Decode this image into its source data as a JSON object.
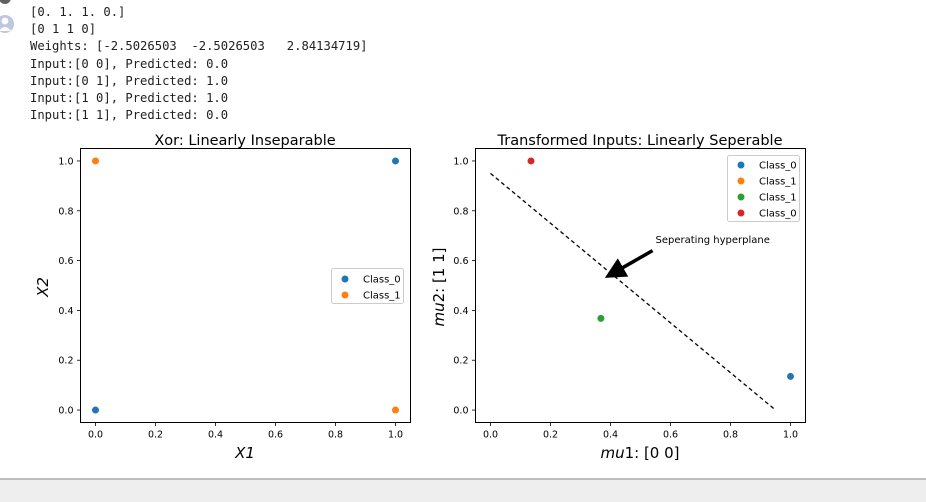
{
  "output_lines": [
    "[0. 1. 1. 0.]",
    "[0 1 1 0]",
    "Weights: [-2.5026503  -2.5026503   2.84134719]",
    "Input:[0 0], Predicted: 0.0",
    "Input:[0 1], Predicted: 1.0",
    "Input:[1 0], Predicted: 1.0",
    "Input:[1 1], Predicted: 0.0"
  ],
  "chart_data": [
    {
      "type": "scatter",
      "title": "Xor: Linearly Inseparable",
      "xlabel": "X1",
      "ylabel": "X2",
      "xlim": [
        -0.05,
        1.05
      ],
      "ylim": [
        -0.05,
        1.05
      ],
      "xticks": [
        "0.0",
        "0.2",
        "0.4",
        "0.6",
        "0.8",
        "1.0"
      ],
      "yticks": [
        "0.0",
        "0.2",
        "0.4",
        "0.6",
        "0.8",
        "1.0"
      ],
      "legend_position": "right",
      "series": [
        {
          "name": "Class_0",
          "color": "#1f77b4",
          "points": [
            [
              0,
              0
            ],
            [
              1,
              1
            ]
          ]
        },
        {
          "name": "Class_1",
          "color": "#ff7f0e",
          "points": [
            [
              0,
              1
            ],
            [
              1,
              0
            ]
          ]
        }
      ]
    },
    {
      "type": "scatter",
      "title": "Transformed Inputs: Linearly Seperable",
      "xlabel_italic": "mu",
      "xlabel_rest": "1: [0 0]",
      "ylabel_italic": "mu",
      "ylabel_rest": "2: [1 1]",
      "xlim": [
        -0.05,
        1.05
      ],
      "ylim": [
        -0.05,
        1.05
      ],
      "xticks": [
        "0.0",
        "0.2",
        "0.4",
        "0.6",
        "0.8",
        "1.0"
      ],
      "yticks": [
        "0.0",
        "0.2",
        "0.4",
        "0.6",
        "0.8",
        "1.0"
      ],
      "legend_position": "top-right",
      "series": [
        {
          "name": "Class_0",
          "color": "#1f77b4",
          "points": [
            [
              1.0,
              0.135
            ]
          ]
        },
        {
          "name": "Class_1",
          "color": "#ff7f0e",
          "points": []
        },
        {
          "name": "Class_1",
          "color": "#2ca02c",
          "points": [
            [
              0.368,
              0.368
            ]
          ]
        },
        {
          "name": "Class_0",
          "color": "#d62728",
          "points": [
            [
              0.135,
              1.0
            ]
          ]
        }
      ],
      "separator_line": [
        [
          0.0,
          0.95
        ],
        [
          0.95,
          0.0
        ]
      ],
      "annotation": {
        "text": "Seperating hyperplane",
        "text_at": [
          0.55,
          0.67
        ],
        "arrow_tail": [
          0.54,
          0.64
        ],
        "arrow_head": [
          0.41,
          0.55
        ]
      }
    }
  ]
}
